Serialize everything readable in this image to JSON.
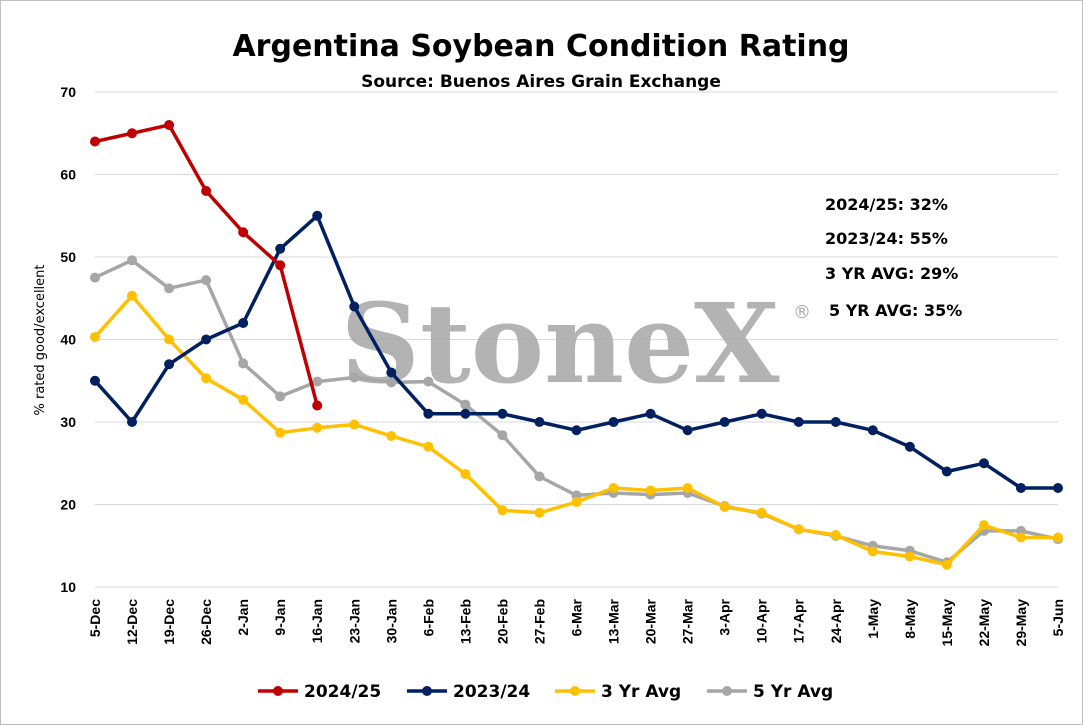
{
  "chart_data": {
    "type": "line",
    "title": "Argentina Soybean Condition Rating",
    "subtitle": "Source: Buenos Aires Grain Exchange",
    "ylabel": "% rated good/excellent",
    "xlabel": "",
    "ylim": [
      10,
      70
    ],
    "yticks": [
      10,
      20,
      30,
      40,
      50,
      60,
      70
    ],
    "grid": "horizontal",
    "legend": "bottom",
    "categories": [
      "5-Dec",
      "12-Dec",
      "19-Dec",
      "26-Dec",
      "2-Jan",
      "9-Jan",
      "16-Jan",
      "23-Jan",
      "30-Jan",
      "6-Feb",
      "13-Feb",
      "20-Feb",
      "27-Feb",
      "6-Mar",
      "13-Mar",
      "20-Mar",
      "27-Mar",
      "3-Apr",
      "10-Apr",
      "17-Apr",
      "24-Apr",
      "1-May",
      "8-May",
      "15-May",
      "22-May",
      "29-May",
      "5-Jun"
    ],
    "series": [
      {
        "name": "2024/25",
        "color": "#c00000",
        "values": [
          64,
          65,
          66,
          58,
          53,
          49,
          32,
          null,
          null,
          null,
          null,
          null,
          null,
          null,
          null,
          null,
          null,
          null,
          null,
          null,
          null,
          null,
          null,
          null,
          null,
          null,
          null
        ]
      },
      {
        "name": "2023/24",
        "color": "#002060",
        "values": [
          35,
          30,
          37,
          40,
          42,
          51,
          55,
          44,
          36,
          31,
          31,
          31,
          30,
          29,
          30,
          31,
          29,
          30,
          31,
          30,
          30,
          29,
          27,
          24,
          25,
          22,
          22
        ]
      },
      {
        "name": "3 Yr Avg",
        "color": "#ffc000",
        "values": [
          40.3,
          45.3,
          40,
          35.3,
          32.7,
          28.7,
          29.3,
          29.7,
          28.3,
          27,
          23.7,
          19.3,
          19,
          20.3,
          22,
          21.7,
          22,
          19.7,
          19,
          17,
          16.3,
          14.3,
          13.7,
          12.7,
          17.5,
          16,
          16
        ]
      },
      {
        "name": "5 Yr Avg",
        "color": "#a6a6a6",
        "values": [
          47.5,
          49.6,
          46.2,
          47.2,
          37.1,
          33.1,
          34.9,
          35.4,
          34.8,
          34.9,
          32.1,
          28.4,
          23.4,
          21.1,
          21.4,
          21.2,
          21.4,
          19.8,
          18.9,
          17,
          16.2,
          15,
          14.4,
          13,
          16.8,
          16.8,
          15.8
        ]
      }
    ],
    "annotations": [
      "2024/25: 32%",
      "2023/24: 55%",
      "3 YR AVG: 29%",
      "5 YR AVG: 35%"
    ]
  },
  "watermark": {
    "text": "StoneX",
    "mark": "®"
  }
}
